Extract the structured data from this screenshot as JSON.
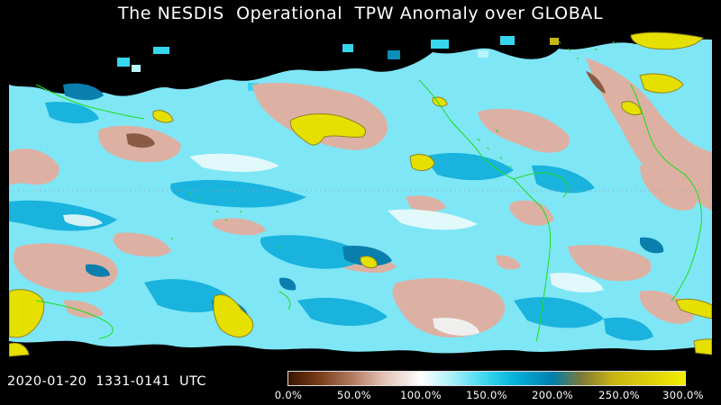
{
  "title": "The NESDIS  Operational  TPW Anomaly over GLOBAL",
  "timestamp": "2020-01-20  1331-0141  UTC",
  "colorbar": {
    "ticks": [
      "0.0%",
      "50.0%",
      "100.0%",
      "150.0%",
      "200.0%",
      "250.0%",
      "300.0%"
    ],
    "range": [
      0,
      300
    ],
    "unit": "%"
  },
  "colors": {
    "background": "#000000",
    "dry": "#d9b0a0",
    "normal": "#ffffff",
    "moist": "#2fd0ee",
    "very_moist": "#0b8fb9",
    "extreme": "#e6e000",
    "coastline": "#19e019"
  }
}
